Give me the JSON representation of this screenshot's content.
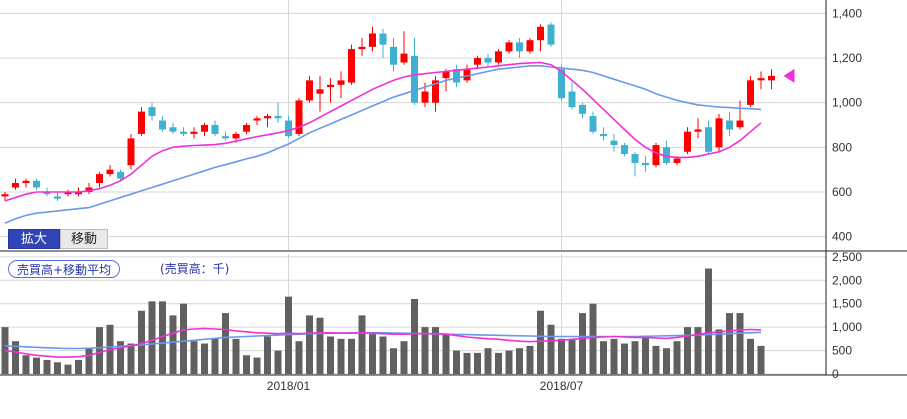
{
  "chart_data": [
    {
      "type": "candlestick",
      "yticks": [
        400,
        600,
        800,
        1000,
        1200,
        1400
      ],
      "ylim": [
        340,
        1460
      ],
      "xticks": [
        {
          "index": 27,
          "label": "2018/01"
        },
        {
          "index": 53,
          "label": "2018/07"
        }
      ],
      "grid": true,
      "candles": [
        {
          "o": 580,
          "h": 600,
          "l": 560,
          "c": 590
        },
        {
          "o": 620,
          "h": 660,
          "l": 610,
          "c": 640
        },
        {
          "o": 640,
          "h": 660,
          "l": 620,
          "c": 650
        },
        {
          "o": 650,
          "h": 660,
          "l": 610,
          "c": 620
        },
        {
          "o": 600,
          "h": 620,
          "l": 580,
          "c": 590
        },
        {
          "o": 580,
          "h": 600,
          "l": 560,
          "c": 570
        },
        {
          "o": 590,
          "h": 610,
          "l": 580,
          "c": 600
        },
        {
          "o": 590,
          "h": 620,
          "l": 580,
          "c": 600
        },
        {
          "o": 600,
          "h": 640,
          "l": 590,
          "c": 620
        },
        {
          "o": 640,
          "h": 690,
          "l": 620,
          "c": 680
        },
        {
          "o": 680,
          "h": 720,
          "l": 670,
          "c": 700
        },
        {
          "o": 690,
          "h": 700,
          "l": 650,
          "c": 660
        },
        {
          "o": 720,
          "h": 860,
          "l": 700,
          "c": 840
        },
        {
          "o": 860,
          "h": 980,
          "l": 850,
          "c": 960
        },
        {
          "o": 980,
          "h": 1000,
          "l": 920,
          "c": 940
        },
        {
          "o": 920,
          "h": 940,
          "l": 870,
          "c": 880
        },
        {
          "o": 890,
          "h": 910,
          "l": 860,
          "c": 870
        },
        {
          "o": 870,
          "h": 890,
          "l": 850,
          "c": 860
        },
        {
          "o": 860,
          "h": 890,
          "l": 840,
          "c": 870
        },
        {
          "o": 870,
          "h": 910,
          "l": 850,
          "c": 900
        },
        {
          "o": 900,
          "h": 920,
          "l": 850,
          "c": 860
        },
        {
          "o": 850,
          "h": 870,
          "l": 830,
          "c": 840
        },
        {
          "o": 840,
          "h": 870,
          "l": 820,
          "c": 860
        },
        {
          "o": 870,
          "h": 910,
          "l": 860,
          "c": 900
        },
        {
          "o": 920,
          "h": 940,
          "l": 900,
          "c": 930
        },
        {
          "o": 930,
          "h": 950,
          "l": 890,
          "c": 940
        },
        {
          "o": 940,
          "h": 1000,
          "l": 910,
          "c": 930
        },
        {
          "o": 920,
          "h": 940,
          "l": 840,
          "c": 850
        },
        {
          "o": 860,
          "h": 1020,
          "l": 850,
          "c": 1010
        },
        {
          "o": 1010,
          "h": 1120,
          "l": 1000,
          "c": 1100
        },
        {
          "o": 1040,
          "h": 1120,
          "l": 960,
          "c": 1060
        },
        {
          "o": 1070,
          "h": 1110,
          "l": 1000,
          "c": 1080
        },
        {
          "o": 1080,
          "h": 1140,
          "l": 1020,
          "c": 1100
        },
        {
          "o": 1090,
          "h": 1260,
          "l": 1080,
          "c": 1240
        },
        {
          "o": 1240,
          "h": 1290,
          "l": 1210,
          "c": 1250
        },
        {
          "o": 1250,
          "h": 1340,
          "l": 1230,
          "c": 1310
        },
        {
          "o": 1310,
          "h": 1330,
          "l": 1200,
          "c": 1260
        },
        {
          "o": 1250,
          "h": 1290,
          "l": 1140,
          "c": 1170
        },
        {
          "o": 1180,
          "h": 1320,
          "l": 1170,
          "c": 1220
        },
        {
          "o": 1210,
          "h": 1290,
          "l": 990,
          "c": 1000
        },
        {
          "o": 1000,
          "h": 1090,
          "l": 980,
          "c": 1050
        },
        {
          "o": 1000,
          "h": 1120,
          "l": 960,
          "c": 1100
        },
        {
          "o": 1110,
          "h": 1150,
          "l": 1050,
          "c": 1140
        },
        {
          "o": 1150,
          "h": 1170,
          "l": 1070,
          "c": 1090
        },
        {
          "o": 1100,
          "h": 1170,
          "l": 1090,
          "c": 1150
        },
        {
          "o": 1170,
          "h": 1210,
          "l": 1150,
          "c": 1200
        },
        {
          "o": 1200,
          "h": 1220,
          "l": 1160,
          "c": 1180
        },
        {
          "o": 1180,
          "h": 1240,
          "l": 1170,
          "c": 1230
        },
        {
          "o": 1230,
          "h": 1280,
          "l": 1220,
          "c": 1270
        },
        {
          "o": 1270,
          "h": 1290,
          "l": 1200,
          "c": 1230
        },
        {
          "o": 1230,
          "h": 1290,
          "l": 1220,
          "c": 1280
        },
        {
          "o": 1280,
          "h": 1350,
          "l": 1230,
          "c": 1340
        },
        {
          "o": 1350,
          "h": 1360,
          "l": 1250,
          "c": 1260
        },
        {
          "o": 1150,
          "h": 1170,
          "l": 1010,
          "c": 1020
        },
        {
          "o": 1050,
          "h": 1090,
          "l": 970,
          "c": 980
        },
        {
          "o": 990,
          "h": 1000,
          "l": 930,
          "c": 950
        },
        {
          "o": 940,
          "h": 960,
          "l": 860,
          "c": 870
        },
        {
          "o": 860,
          "h": 890,
          "l": 830,
          "c": 850
        },
        {
          "o": 830,
          "h": 860,
          "l": 780,
          "c": 810
        },
        {
          "o": 810,
          "h": 820,
          "l": 760,
          "c": 770
        },
        {
          "o": 770,
          "h": 780,
          "l": 670,
          "c": 730
        },
        {
          "o": 730,
          "h": 760,
          "l": 690,
          "c": 720
        },
        {
          "o": 720,
          "h": 820,
          "l": 710,
          "c": 810
        },
        {
          "o": 800,
          "h": 830,
          "l": 720,
          "c": 730
        },
        {
          "o": 730,
          "h": 760,
          "l": 720,
          "c": 750
        },
        {
          "o": 780,
          "h": 890,
          "l": 770,
          "c": 870
        },
        {
          "o": 870,
          "h": 930,
          "l": 840,
          "c": 880
        },
        {
          "o": 890,
          "h": 920,
          "l": 770,
          "c": 780
        },
        {
          "o": 800,
          "h": 950,
          "l": 780,
          "c": 930
        },
        {
          "o": 920,
          "h": 960,
          "l": 850,
          "c": 880
        },
        {
          "o": 890,
          "h": 1010,
          "l": 880,
          "c": 920
        },
        {
          "o": 990,
          "h": 1120,
          "l": 980,
          "c": 1100
        },
        {
          "o": 1100,
          "h": 1140,
          "l": 1060,
          "c": 1110
        },
        {
          "o": 1100,
          "h": 1150,
          "l": 1060,
          "c": 1120
        }
      ],
      "ma_short": [
        560,
        575,
        590,
        600,
        600,
        600,
        600,
        600,
        605,
        615,
        630,
        650,
        680,
        720,
        760,
        785,
        800,
        805,
        808,
        810,
        812,
        818,
        828,
        838,
        848,
        856,
        865,
        875,
        890,
        910,
        935,
        960,
        985,
        1010,
        1035,
        1060,
        1080,
        1100,
        1115,
        1125,
        1130,
        1135,
        1140,
        1145,
        1150,
        1155,
        1160,
        1165,
        1170,
        1175,
        1178,
        1180,
        1170,
        1140,
        1100,
        1060,
        1015,
        970,
        925,
        880,
        835,
        800,
        775,
        760,
        755,
        755,
        760,
        770,
        780,
        800,
        830,
        870,
        910
      ],
      "ma_long": [
        460,
        480,
        495,
        505,
        510,
        515,
        520,
        525,
        530,
        545,
        560,
        575,
        590,
        605,
        620,
        635,
        650,
        665,
        680,
        695,
        710,
        722,
        735,
        748,
        760,
        775,
        795,
        815,
        840,
        865,
        885,
        905,
        925,
        945,
        965,
        985,
        1005,
        1025,
        1040,
        1055,
        1070,
        1085,
        1100,
        1110,
        1120,
        1130,
        1140,
        1150,
        1155,
        1160,
        1165,
        1165,
        1160,
        1155,
        1150,
        1145,
        1135,
        1120,
        1105,
        1090,
        1075,
        1060,
        1040,
        1025,
        1010,
        1000,
        990,
        985,
        980,
        978,
        975,
        973,
        970
      ],
      "marker_value": 1120
    },
    {
      "type": "bar",
      "legend": "売買高+移動平均",
      "unit_label": "(売買高：千)",
      "yticks": [
        0,
        500,
        1000,
        1500,
        2000,
        2500
      ],
      "ylim": [
        0,
        2560
      ],
      "values": [
        1000,
        700,
        400,
        350,
        300,
        250,
        200,
        300,
        550,
        1000,
        1050,
        700,
        650,
        1350,
        1550,
        1550,
        1250,
        1500,
        700,
        650,
        750,
        1300,
        750,
        400,
        350,
        800,
        500,
        1650,
        700,
        1250,
        1200,
        800,
        750,
        750,
        1250,
        850,
        800,
        550,
        700,
        1600,
        1000,
        1000,
        850,
        500,
        450,
        450,
        550,
        450,
        500,
        550,
        600,
        1350,
        1050,
        750,
        750,
        1300,
        1500,
        700,
        750,
        650,
        700,
        800,
        600,
        550,
        700,
        1000,
        1000,
        2250,
        950,
        1300,
        1300,
        750,
        600
      ],
      "ma_short": [
        500,
        470,
        430,
        400,
        380,
        360,
        360,
        370,
        400,
        460,
        520,
        560,
        600,
        650,
        720,
        800,
        870,
        940,
        960,
        970,
        960,
        950,
        920,
        900,
        880,
        870,
        860,
        870,
        860,
        870,
        880,
        880,
        870,
        870,
        880,
        870,
        860,
        850,
        850,
        860,
        860,
        860,
        850,
        820,
        790,
        770,
        750,
        740,
        720,
        700,
        690,
        700,
        710,
        720,
        740,
        760,
        780,
        790,
        800,
        790,
        780,
        780,
        770,
        760,
        780,
        810,
        840,
        880,
        900,
        920,
        940,
        950,
        940
      ],
      "ma_long": [
        600,
        590,
        580,
        570,
        560,
        550,
        545,
        545,
        550,
        560,
        575,
        590,
        605,
        620,
        640,
        660,
        680,
        700,
        720,
        740,
        760,
        780,
        790,
        800,
        810,
        820,
        830,
        840,
        850,
        860,
        865,
        870,
        875,
        880,
        880,
        880,
        880,
        875,
        870,
        865,
        860,
        855,
        850,
        845,
        840,
        835,
        830,
        825,
        820,
        815,
        810,
        805,
        800,
        800,
        800,
        800,
        800,
        800,
        800,
        800,
        800,
        805,
        810,
        815,
        820,
        825,
        830,
        840,
        850,
        860,
        870,
        880,
        890
      ]
    }
  ],
  "controls": {
    "zoom_label": "拡大",
    "move_label": "移動"
  },
  "colors": {
    "up": "#ff0000",
    "down": "#3fb0cf",
    "ma_short": "#f030d8",
    "ma_long": "#6b98ea",
    "volume": "#606060",
    "grid": "#d6d6d6",
    "axis_text": "#333333"
  }
}
